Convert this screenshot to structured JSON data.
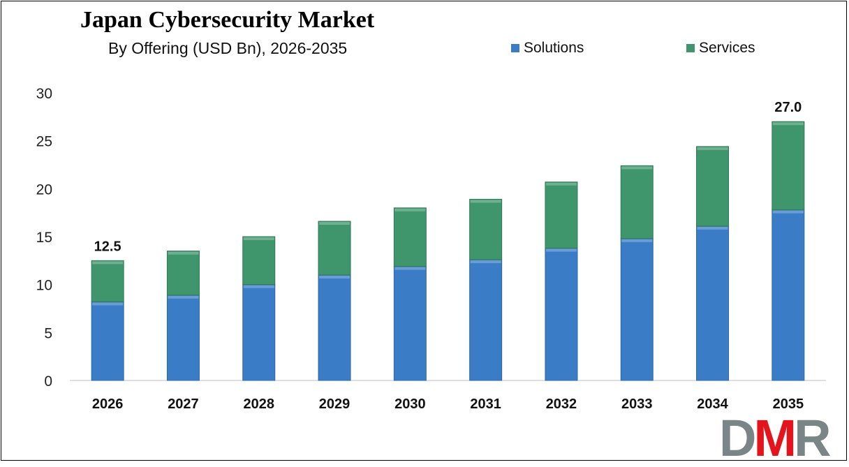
{
  "chart_data": {
    "type": "bar",
    "stacked": true,
    "title": "Japan Cybersecurity Market",
    "subtitle": "By Offering (USD Bn), 2026-2035",
    "categories": [
      "2026",
      "2027",
      "2028",
      "2029",
      "2030",
      "2031",
      "2032",
      "2033",
      "2034",
      "2035"
    ],
    "series": [
      {
        "name": "Solutions",
        "color": "#3a7cc6",
        "values": [
          8.2,
          8.9,
          10.0,
          11.0,
          11.9,
          12.6,
          13.8,
          14.8,
          16.1,
          17.8
        ]
      },
      {
        "name": "Services",
        "color": "#3f966c",
        "values": [
          4.3,
          4.6,
          5.0,
          5.6,
          6.1,
          6.3,
          6.9,
          7.6,
          8.3,
          9.2
        ]
      }
    ],
    "data_labels": [
      {
        "category": "2026",
        "text": "12.5"
      },
      {
        "category": "2035",
        "text": "27.0"
      }
    ],
    "ylim": [
      0,
      30
    ],
    "yticks": [
      "0",
      "5",
      "10",
      "15",
      "20",
      "25",
      "30"
    ],
    "grid": false,
    "legend_position": "top-right"
  },
  "logo": {
    "text": "DMR",
    "colors": [
      "#7a8587",
      "#e3141b"
    ]
  }
}
